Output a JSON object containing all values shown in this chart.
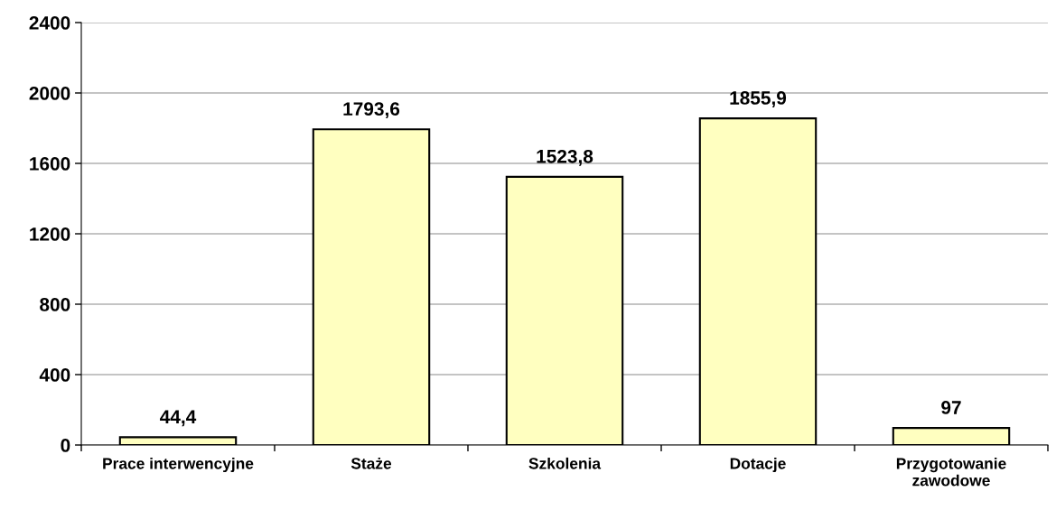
{
  "chart_data": {
    "type": "bar",
    "categories": [
      "Prace interwencyjne",
      "Staże",
      "Szkolenia",
      "Dotacje",
      "Przygotowanie\nzawodowe"
    ],
    "values": [
      44.4,
      1793.6,
      1523.8,
      1855.9,
      97
    ],
    "value_labels": [
      "44,4",
      "1793,6",
      "1523,8",
      "1855,9",
      "97"
    ],
    "color": "#ffffc0",
    "ylim": [
      0,
      2400
    ],
    "yticks": [
      0,
      400,
      800,
      1200,
      1600,
      2000,
      2400
    ],
    "grid": "y",
    "legend": false
  }
}
